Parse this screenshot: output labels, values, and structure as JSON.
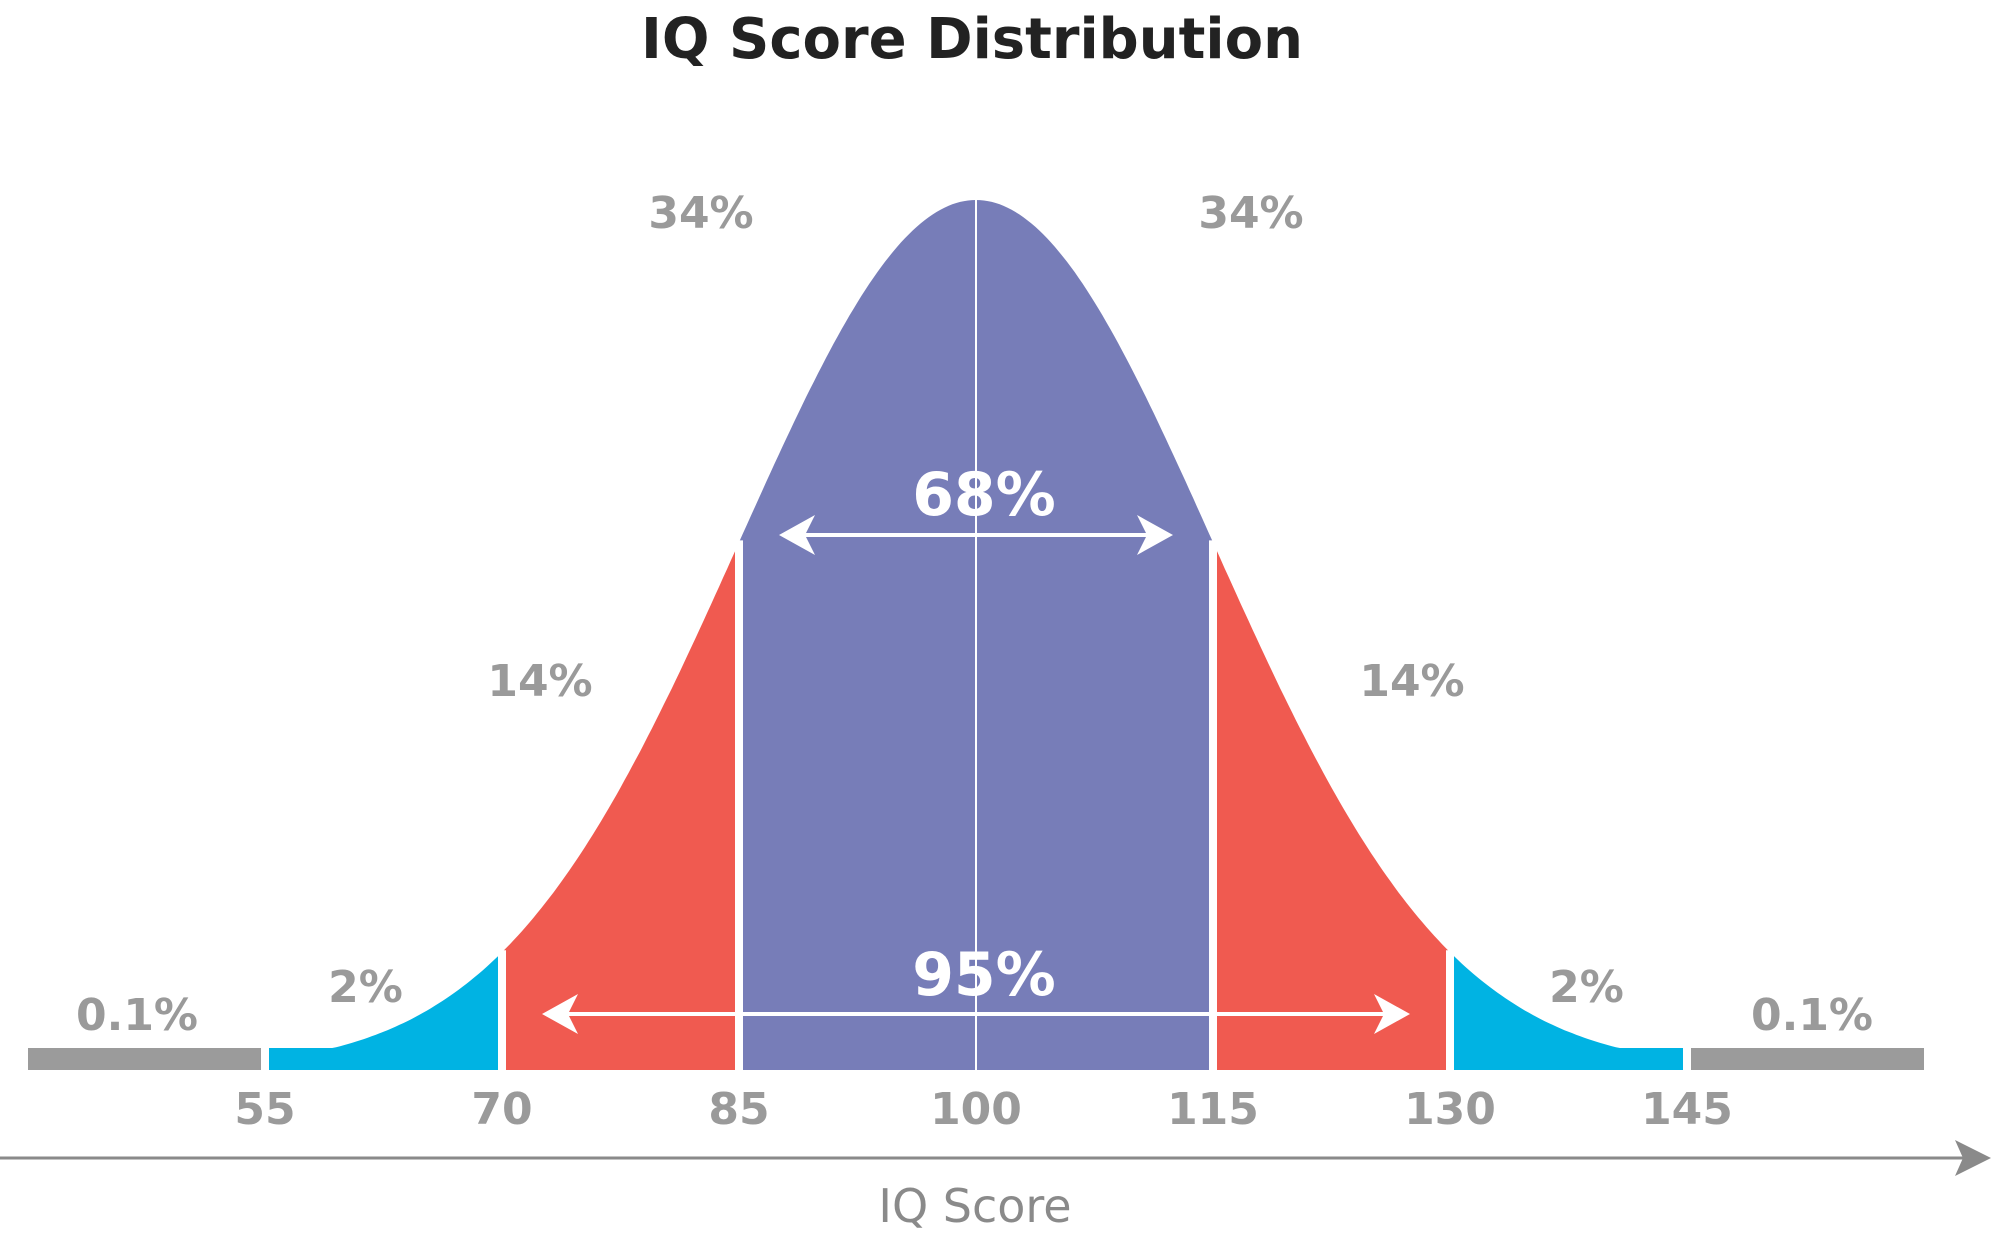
{
  "chart_data": {
    "type": "area",
    "title": "IQ Score Distribution",
    "xlabel": "IQ Score",
    "ylabel": "",
    "distribution": {
      "mean": 100,
      "sd": 15
    },
    "xlim": [
      40,
      160
    ],
    "x_ticks": [
      "55",
      "70",
      "85",
      "100",
      "115",
      "130",
      "145"
    ],
    "bands": [
      {
        "from": 40,
        "to": 55,
        "label": "0.1%",
        "color": "#9b9b9b"
      },
      {
        "from": 55,
        "to": 70,
        "label": "2%",
        "color": "#00b3e3"
      },
      {
        "from": 70,
        "to": 85,
        "label": "14%",
        "color": "#f05a50"
      },
      {
        "from": 85,
        "to": 100,
        "label": "34%",
        "color": "#777db8"
      },
      {
        "from": 100,
        "to": 115,
        "label": "34%",
        "color": "#777db8"
      },
      {
        "from": 115,
        "to": 130,
        "label": "14%",
        "color": "#f05a50"
      },
      {
        "from": 130,
        "to": 145,
        "label": "2%",
        "color": "#00b3e3"
      },
      {
        "from": 145,
        "to": 160,
        "label": "0.1%",
        "color": "#9b9b9b"
      }
    ],
    "ranges": [
      {
        "from": 85,
        "to": 115,
        "label": "68%"
      },
      {
        "from": 70,
        "to": 130,
        "label": "95%"
      }
    ],
    "colors": {
      "axis": "#8a8a8a",
      "text": "#9a9a9a",
      "title": "#222222",
      "divider": "#ffffff"
    }
  }
}
